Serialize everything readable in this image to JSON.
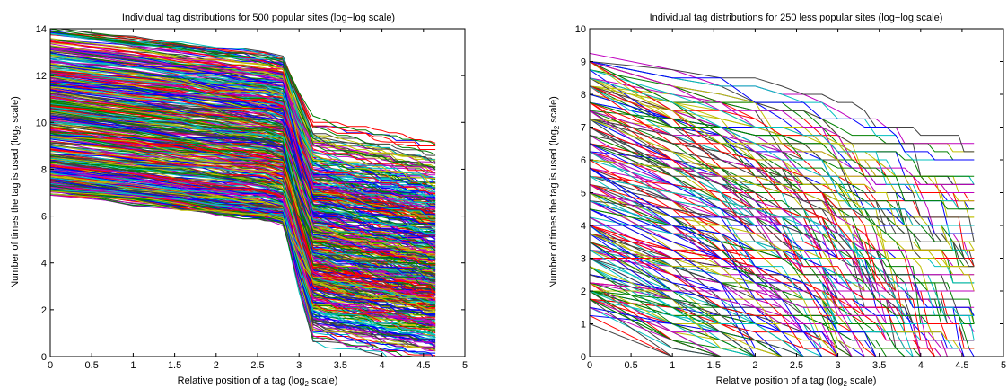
{
  "chart_data": [
    {
      "type": "line",
      "title": "Individual tag distributions for 500 popular sites (log−log scale)",
      "xlabel_main": "Relative position of a tag (log",
      "xlabel_sub": "2",
      "xlabel_tail": " scale)",
      "ylabel_main": "Number of times the tag is used (log",
      "ylabel_sub": "2",
      "ylabel_tail": " scale)",
      "xlim": [
        0,
        5
      ],
      "ylim": [
        0,
        14
      ],
      "xticks": [
        "0",
        "0.5",
        "1",
        "1.5",
        "2",
        "2.5",
        "3",
        "3.5",
        "4",
        "4.5",
        "5"
      ],
      "yticks": [
        "0",
        "2",
        "4",
        "6",
        "8",
        "10",
        "12",
        "14"
      ],
      "x": [
        0,
        1,
        1.585,
        2,
        2.322,
        2.585,
        2.807,
        3,
        3.17,
        3.322,
        3.459,
        3.585,
        3.7,
        3.807,
        3.907,
        4,
        4.087,
        4.17,
        4.248,
        4.322,
        4.392,
        4.459,
        4.524,
        4.585,
        4.644
      ],
      "series_count": 500,
      "start_range": [
        7,
        14
      ],
      "end_range": [
        2,
        8.4
      ],
      "grid": false,
      "legend": "none",
      "colors": [
        "#0000ff",
        "#008000",
        "#ff0000",
        "#00bfbf",
        "#bf00bf",
        "#bfbf00",
        "#404040"
      ]
    },
    {
      "type": "line",
      "title": "Individual tag distributions for 250 less popular sites (log−log scale)",
      "xlabel_main": "Relative position of a tag (log",
      "xlabel_sub": "2",
      "xlabel_tail": " scale)",
      "ylabel_main": "Number of times the tag is used (log",
      "ylabel_sub": "2",
      "ylabel_tail": " scale)",
      "xlim": [
        0,
        5
      ],
      "ylim": [
        0,
        10
      ],
      "xticks": [
        "0",
        "0.5",
        "1",
        "1.5",
        "2",
        "2.5",
        "3",
        "3.5",
        "4",
        "4.5",
        "5"
      ],
      "yticks": [
        "0",
        "1",
        "2",
        "3",
        "4",
        "5",
        "6",
        "7",
        "8",
        "9",
        "10"
      ],
      "x": [
        0,
        1,
        1.585,
        2,
        2.322,
        2.585,
        2.807,
        3,
        3.17,
        3.322,
        3.459,
        3.585,
        3.7,
        3.807,
        3.907,
        4,
        4.087,
        4.17,
        4.248,
        4.322,
        4.392,
        4.459,
        4.524,
        4.585,
        4.644
      ],
      "series_count": 250,
      "start_range": [
        1,
        9.2
      ],
      "end_range": [
        0,
        4.6
      ],
      "grid": false,
      "legend": "none",
      "colors": [
        "#0000ff",
        "#008000",
        "#ff0000",
        "#00bfbf",
        "#bf00bf",
        "#bfbf00",
        "#404040"
      ]
    }
  ]
}
